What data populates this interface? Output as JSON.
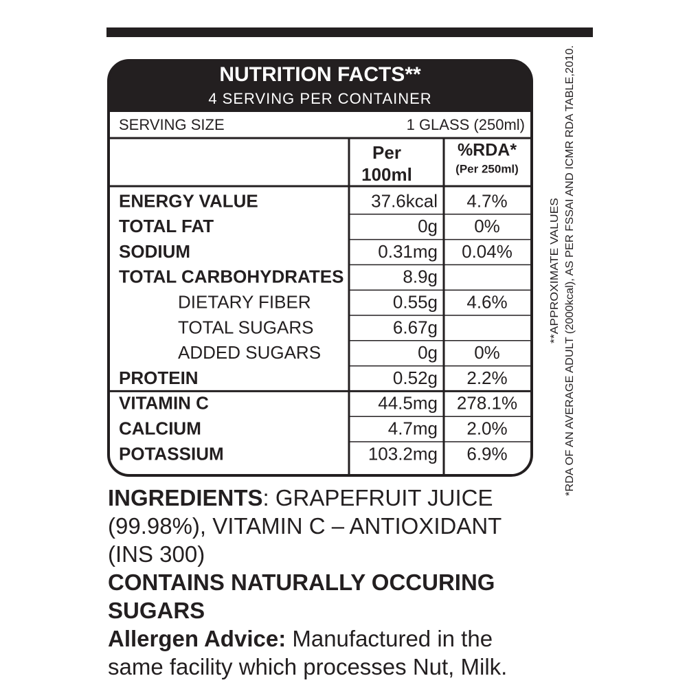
{
  "header": {
    "title": "NUTRITION FACTS**",
    "subtitle": "4 SERVING PER CONTAINER"
  },
  "serving": {
    "label": "SERVING SIZE",
    "value": "1 GLASS (250ml)"
  },
  "columns": {
    "per": [
      "Per",
      "100ml"
    ],
    "rda": [
      "%RDA*",
      "(Per 250ml)"
    ]
  },
  "rows": [
    {
      "name": "ENERGY VALUE",
      "per": "37.6kcal",
      "rda": "4.7%"
    },
    {
      "name": "TOTAL FAT",
      "per": "0g",
      "rda": "0%"
    },
    {
      "name": "SODIUM",
      "per": "0.31mg",
      "rda": "0.04%"
    },
    {
      "name": "TOTAL CARBOHYDRATES",
      "per": "8.9g"
    },
    {
      "name": "DIETARY FIBER",
      "per": "0.55g",
      "rda": "4.6%"
    },
    {
      "name": "TOTAL SUGARS",
      "per": "6.67g"
    },
    {
      "name": "ADDED SUGARS",
      "per": "0g",
      "rda": "0%"
    },
    {
      "name": "PROTEIN",
      "per": "0.52g",
      "rda": "2.2%"
    },
    {
      "name": "VITAMIN C",
      "per": "44.5mg",
      "rda": "278.1%"
    },
    {
      "name": "CALCIUM",
      "per": "4.7mg",
      "rda": "2.0%"
    },
    {
      "name": "POTASSIUM",
      "per": "103.2mg",
      "rda": "6.9%"
    }
  ],
  "notes": [
    "**APPROXIMATE VALUES",
    "*RDA OF AN AVERAGE ADULT (2000kcal), AS PER FSSAI AND ICMR RDA TABLE,2010."
  ],
  "ingredients": {
    "label": "INGREDIENTS",
    "text": ": GRAPEFRUIT JUICE (99.98%), VITAMIN C – ANTIOXIDANT (INS 300)"
  },
  "contains": "CONTAINS NATURALLY OCCURING SUGARS",
  "allergen": {
    "label": "Allergen Advice:",
    "text": "Manufactured in the same facility which processes Nut, Milk."
  }
}
